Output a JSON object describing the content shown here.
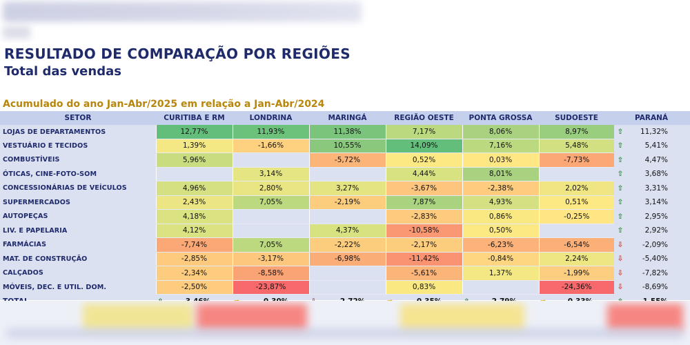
{
  "report": {
    "title": "RESULTADO DE COMPARAÇÃO POR REGIÕES",
    "subtitle": "Total das vendas",
    "period": "Acumulado do ano Jan-Abr/2025 em relação a Jan-Abr/2024"
  },
  "table": {
    "headers": [
      "SETOR",
      "CURITIBA E RM",
      "LONDRINA",
      "MARINGÁ",
      "REGIÃO OESTE",
      "PONTA GROSSA",
      "SUDOESTE",
      "",
      "PARANÁ"
    ],
    "rows": [
      {
        "sector": "LOJAS DE DEPARTAMENTOS",
        "values": [
          "12,77%",
          "11,93%",
          "11,38%",
          "7,17%",
          "8,06%",
          "8,97%"
        ],
        "colors": [
          "#63be7b",
          "#6cc17b",
          "#7ac47c",
          "#bbd97f",
          "#a8d27f",
          "#99ce7e"
        ],
        "arrow": "up",
        "total": "11,32%"
      },
      {
        "sector": "VESTUÁRIO E TECIDOS",
        "values": [
          "1,39%",
          "-1,66%",
          "10,55%",
          "14,09%",
          "7,16%",
          "5,48%"
        ],
        "colors": [
          "#f4e884",
          "#fdd17f",
          "#8ac97d",
          "#63be7b",
          "#bbd97f",
          "#d2e081"
        ],
        "arrow": "up",
        "total": "5,41%"
      },
      {
        "sector": "COMBUSTÍVEIS",
        "values": [
          "5,96%",
          "",
          "-5,72%",
          "0,52%",
          "0,03%",
          "-7,73%"
        ],
        "colors": [
          "#c9dd80",
          "",
          "#fcb579",
          "#fde983",
          "#ffe884",
          "#fba876"
        ],
        "arrow": "up",
        "total": "4,47%"
      },
      {
        "sector": "ÓTICAS, CINE-FOTO-SOM",
        "values": [
          "",
          "3,14%",
          "",
          "4,44%",
          "8,01%",
          ""
        ],
        "colors": [
          "",
          "#e6e583",
          "",
          "#d9e281",
          "#a8d27f",
          ""
        ],
        "arrow": "up",
        "total": "3,68%"
      },
      {
        "sector": "CONCESSIONÁRIAS DE VEÍCULOS",
        "values": [
          "4,96%",
          "2,80%",
          "3,27%",
          "-3,67%",
          "-2,38%",
          "2,02%"
        ],
        "colors": [
          "#d4e081",
          "#e9e583",
          "#e4e482",
          "#fdc57d",
          "#fdcc7e",
          "#efe683"
        ],
        "arrow": "up",
        "total": "3,31%"
      },
      {
        "sector": "SUPERMERCADOS",
        "values": [
          "2,43%",
          "7,05%",
          "-2,19%",
          "7,87%",
          "4,93%",
          "0,51%"
        ],
        "colors": [
          "#ece583",
          "#bcd97f",
          "#fdcd7e",
          "#aad37f",
          "#d4e081",
          "#fde983"
        ],
        "arrow": "up",
        "total": "3,14%"
      },
      {
        "sector": "AUTOPEÇAS",
        "values": [
          "4,18%",
          "",
          "",
          "-2,83%",
          "0,86%",
          "-0,25%"
        ],
        "colors": [
          "#dae281",
          "",
          "",
          "#fdcb7e",
          "#fae983",
          "#ffe584"
        ],
        "arrow": "up",
        "total": "2,95%"
      },
      {
        "sector": "LIV. E PAPELARIA",
        "values": [
          "4,12%",
          "",
          "4,37%",
          "-10,58%",
          "0,50%",
          ""
        ],
        "colors": [
          "#dbe281",
          "",
          "#d9e281",
          "#f99873",
          "#fde983",
          ""
        ],
        "arrow": "up",
        "total": "2,92%"
      },
      {
        "sector": "FARMÁCIAS",
        "values": [
          "-7,74%",
          "7,05%",
          "-2,22%",
          "-2,17%",
          "-6,23%",
          "-6,54%"
        ],
        "colors": [
          "#fba876",
          "#bcd97f",
          "#fdcd7e",
          "#fdcd7e",
          "#fcb278",
          "#fcb078"
        ],
        "arrow": "down",
        "total": "-2,09%"
      },
      {
        "sector": "MAT. DE CONSTRUÇÃO",
        "values": [
          "-2,85%",
          "-3,17%",
          "-6,98%",
          "-11,42%",
          "-0,84%",
          "2,24%"
        ],
        "colors": [
          "#fdca7e",
          "#fdc87d",
          "#fbad77",
          "#f99372",
          "#fed682",
          "#ede683"
        ],
        "arrow": "down",
        "total": "-5,40%"
      },
      {
        "sector": "CALÇADOS",
        "values": [
          "-2,34%",
          "-8,58%",
          "",
          "-5,61%",
          "1,37%",
          "-1,99%"
        ],
        "colors": [
          "#fdcc7e",
          "#faa375",
          "",
          "#fcb579",
          "#f4e884",
          "#fdce7f"
        ],
        "arrow": "down",
        "total": "-7,82%"
      },
      {
        "sector": "MÓVEIS, DEC. E UTIL. DOM.",
        "values": [
          "-2,50%",
          "-23,87%",
          "",
          "0,83%",
          "",
          "-24,36%"
        ],
        "colors": [
          "#fdcc7e",
          "#f8696b",
          "",
          "#fae983",
          "",
          "#f8696b"
        ],
        "arrow": "down",
        "total": "-8,69%"
      }
    ],
    "total": {
      "label": "TOTAL",
      "values": [
        "3,46%",
        "-0,30%",
        "-2,72%",
        "-0,35%",
        "2,79%",
        "0,33%"
      ],
      "arrows": [
        "up",
        "right",
        "down",
        "right",
        "up",
        "right"
      ],
      "arrow": "up",
      "value": "1,55%"
    }
  },
  "colors": {
    "title": "#1f2a6b",
    "period": "#b8860b",
    "sheet_bg": "#dbe1f1",
    "header_bg": "#c4d0ec",
    "arrow_up": "#2e8b3a",
    "arrow_down": "#d13a2a",
    "arrow_right": "#e0a800"
  }
}
